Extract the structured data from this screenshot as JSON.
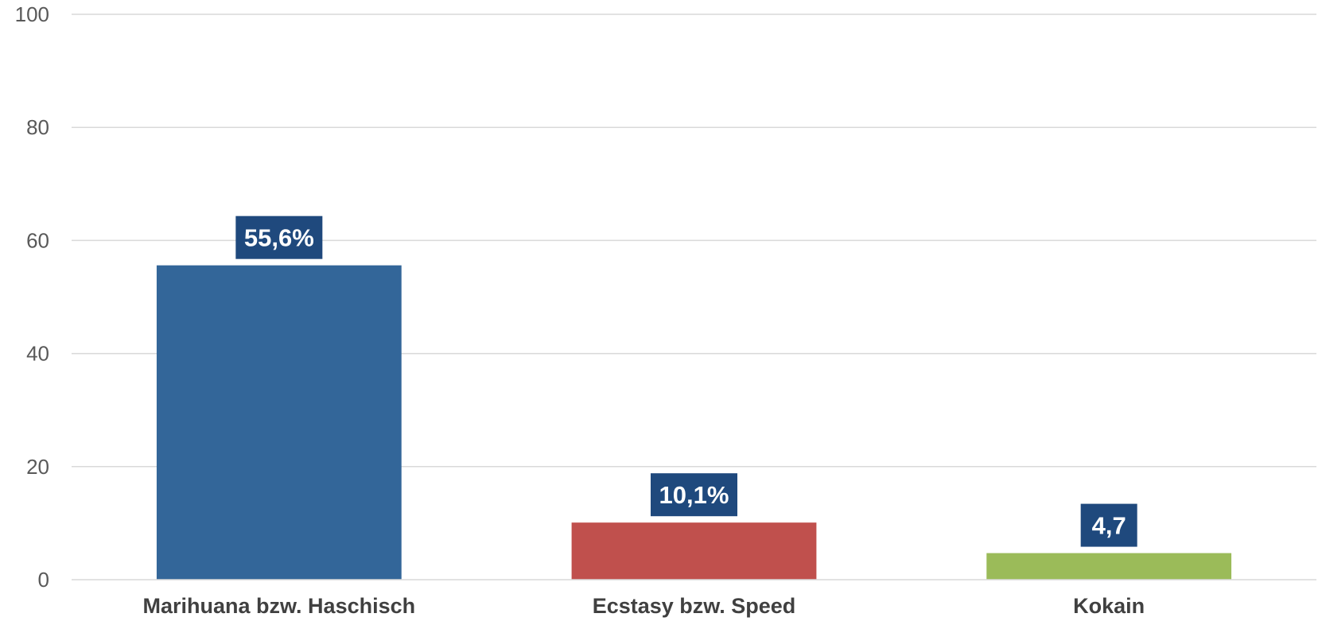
{
  "chart_data": {
    "type": "bar",
    "title": "",
    "xlabel": "",
    "ylabel": "",
    "ylim": [
      0,
      100
    ],
    "yticks": [
      0,
      20,
      40,
      60,
      80,
      100
    ],
    "grid": true,
    "legend": "none",
    "categories": [
      "Marihuana bzw. Haschisch",
      "Ecstasy bzw. Speed",
      "Kokain"
    ],
    "values": [
      55.6,
      10.1,
      4.7
    ],
    "data_labels": [
      "55,6%",
      "10,1%",
      "4,7"
    ],
    "bar_colors": [
      "#336699",
      "#c0504d",
      "#9bbb59"
    ],
    "label_box_color": "#1f497d"
  }
}
